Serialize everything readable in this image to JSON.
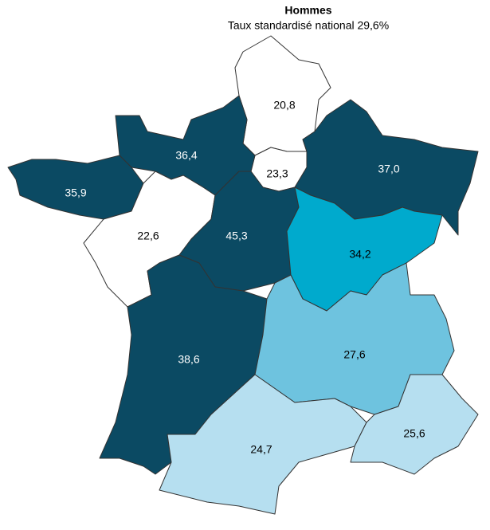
{
  "chart_data": {
    "type": "choropleth",
    "title": "Hommes",
    "subtitle": "Taux standardisé national 29,6%",
    "values": [
      20.8,
      23.3,
      37.0,
      36.4,
      35.9,
      22.6,
      45.3,
      34.2,
      38.6,
      27.6,
      24.7,
      25.6
    ],
    "value_labels": [
      "20,8",
      "23,3",
      "37,0",
      "36,4",
      "35,9",
      "22,6",
      "45,3",
      "34,2",
      "38,6",
      "27,6",
      "24,7",
      "25,6"
    ],
    "colors": [
      "#ffffff",
      "#ffffff",
      "#0b4a63",
      "#0b4a63",
      "#0b4a63",
      "#ffffff",
      "#0b4a63",
      "#00aacd",
      "#0b4a63",
      "#6ec3df",
      "#b6dff0",
      "#b6dff0"
    ]
  }
}
